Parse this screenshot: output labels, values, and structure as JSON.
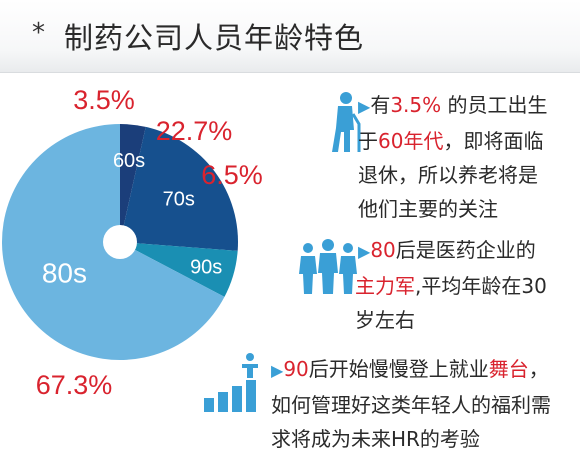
{
  "header": {
    "bullet": "*",
    "title": "制药公司人员年龄特色"
  },
  "chart_data": {
    "type": "pie",
    "categories": [
      "60s",
      "70s",
      "90s",
      "80s"
    ],
    "values": [
      3.5,
      22.7,
      6.5,
      67.3
    ],
    "value_labels": [
      "3.5%",
      "22.7%",
      "6.5%",
      "67.3%"
    ],
    "colors": [
      "#1b3e7a",
      "#16508e",
      "#1a8fb3",
      "#6cb5e0"
    ],
    "title": ""
  },
  "notes": [
    {
      "pre": "有",
      "hl": "3.5%",
      "post": " 的员工出生于",
      "hl2": "60年代",
      "post2": "，即将面临退休，所以养老将是他们主要的关注",
      "lines": [
        "有3.5% 的员工出生",
        "于60年代，即将面临",
        "退休，所以养老将是",
        "他们主要的关注"
      ]
    },
    {
      "lines": [
        "80后是医药企业的",
        "主力军,平均年龄在30",
        "岁左右"
      ]
    },
    {
      "lines": [
        "90后开始慢慢登上就业舞台，",
        "如何管理好这类年轻人的福利需",
        "求将成为未来HR的考验"
      ]
    }
  ],
  "note_parts": {
    "n1": {
      "a": "有",
      "b": "3.5%",
      "c": " 的员工出生",
      "d": "于",
      "e": "60年代",
      "f": "，即将面临",
      "g": "退休，所以养老将是",
      "h": "他们主要的关注"
    },
    "n2": {
      "a": "80",
      "b": "后是医药企业的",
      "c": "主力军",
      "d": ",平均年龄在30",
      "e": "岁左右"
    },
    "n3": {
      "a": "90",
      "b": "后开始慢慢登上就业",
      "c": "舞台",
      "d": "，",
      "e": "如何管理好这类年轻人的福利需",
      "f": "求将成为未来HR的考验"
    }
  },
  "icons": [
    "elderly-person-icon",
    "group-people-icon",
    "growth-person-icon"
  ],
  "accent": "#d9232e",
  "icon_color": "#3a9fd6"
}
